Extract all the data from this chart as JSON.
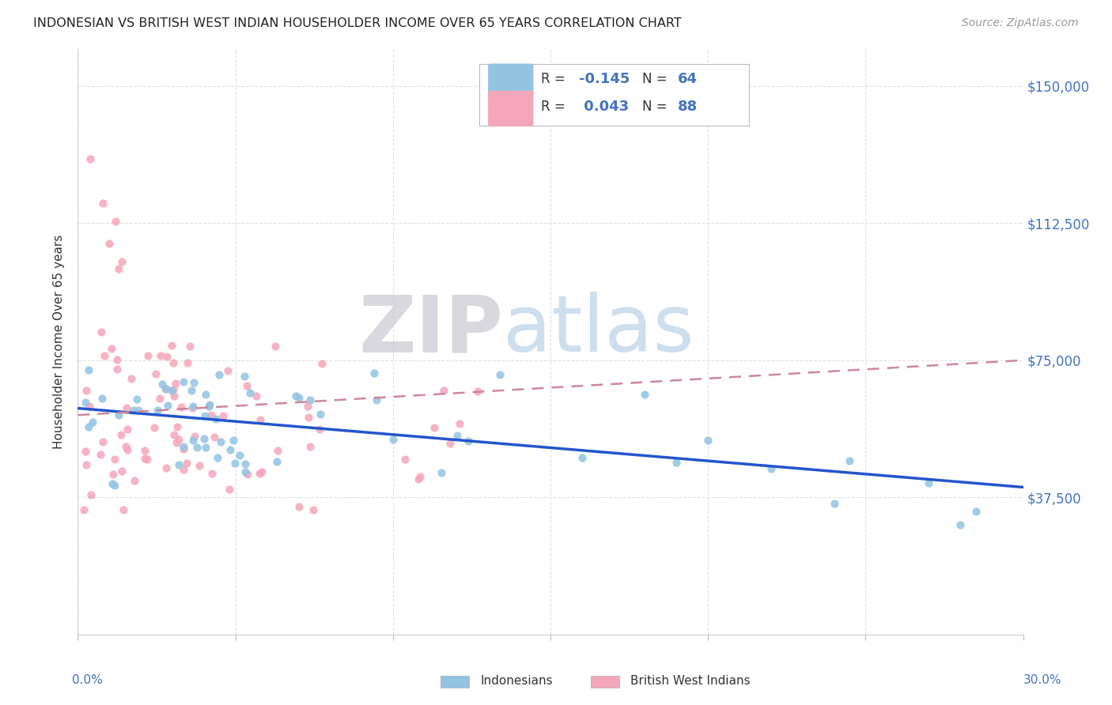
{
  "title": "INDONESIAN VS BRITISH WEST INDIAN HOUSEHOLDER INCOME OVER 65 YEARS CORRELATION CHART",
  "source": "Source: ZipAtlas.com",
  "ylabel": "Householder Income Over 65 years",
  "xlim": [
    0.0,
    0.3
  ],
  "ylim": [
    0,
    160000
  ],
  "yticks": [
    37500,
    75000,
    112500,
    150000
  ],
  "ytick_labels": [
    "$37,500",
    "$75,000",
    "$112,500",
    "$150,000"
  ],
  "indo_color": "#92c4e2",
  "brit_color": "#f4a7ba",
  "trend_indo_color": "#2255cc",
  "trend_brit_color": "#cc8899",
  "watermark_zip_color": "#c8c8d0",
  "watermark_atlas_color": "#b8d0e8",
  "background": "#ffffff",
  "grid_color": "#e0e0e0",
  "right_label_color": "#4472c4",
  "legend_r1": "R = -0.145",
  "legend_n1": "N = 64",
  "legend_r2": "R =  0.043",
  "legend_n2": "N = 88",
  "bottom_label1": "Indonesians",
  "bottom_label2": "British West Indians"
}
